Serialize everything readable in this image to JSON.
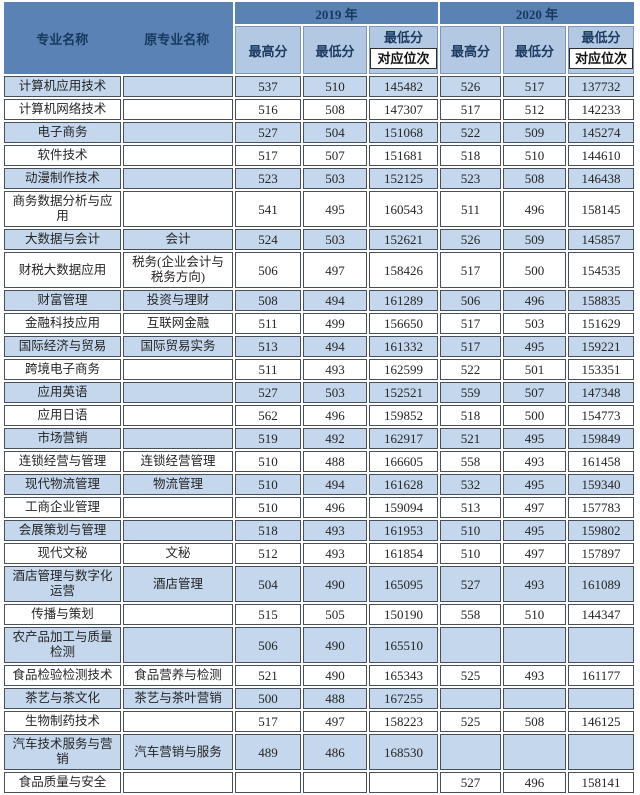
{
  "page": {
    "background": "#ffffff"
  },
  "colors": {
    "header_blue": "#5a82b4",
    "subheader_blue": "#b3c8e2",
    "row_blue": "#c4d7ec",
    "row_white": "#ffffff",
    "header_text": "#17395f",
    "cell_border": "#49505a"
  },
  "table": {
    "headers": {
      "major": "专业名称",
      "original_major": "原专业名称",
      "year_groups": [
        "2019 年",
        "2020 年"
      ],
      "sub": {
        "max": "最高分",
        "min": "最低分",
        "rank_top": "最低分",
        "rank_bottom": "对应位次"
      }
    },
    "chart_data": {
      "type": "table",
      "columns": [
        "专业名称",
        "原专业名称",
        "2019最高分",
        "2019最低分",
        "2019最低分对应位次",
        "2020最高分",
        "2020最低分",
        "2020最低分对应位次"
      ]
    },
    "rows": [
      {
        "cells": [
          "计算机应用技术",
          "",
          "537",
          "510",
          "145482",
          "526",
          "517",
          "137732"
        ]
      },
      {
        "cells": [
          "计算机网络技术",
          "",
          "516",
          "508",
          "147307",
          "517",
          "512",
          "142233"
        ]
      },
      {
        "cells": [
          "电子商务",
          "",
          "527",
          "504",
          "151068",
          "522",
          "509",
          "145274"
        ]
      },
      {
        "cells": [
          "软件技术",
          "",
          "517",
          "507",
          "151681",
          "518",
          "510",
          "144610"
        ]
      },
      {
        "cells": [
          "动漫制作技术",
          "",
          "523",
          "503",
          "152125",
          "523",
          "508",
          "146438"
        ]
      },
      {
        "cells": [
          "商务数据分析与应用",
          "",
          "541",
          "495",
          "160543",
          "511",
          "496",
          "158145"
        ]
      },
      {
        "cells": [
          "大数据与会计",
          "会计",
          "524",
          "503",
          "152621",
          "526",
          "509",
          "145857"
        ]
      },
      {
        "cells": [
          "财税大数据应用",
          "税务(企业会计与税务方向)",
          "506",
          "497",
          "158426",
          "517",
          "500",
          "154535"
        ]
      },
      {
        "cells": [
          "财富管理",
          "投资与理财",
          "508",
          "494",
          "161289",
          "506",
          "496",
          "158835"
        ]
      },
      {
        "cells": [
          "金融科技应用",
          "互联网金融",
          "511",
          "499",
          "156650",
          "517",
          "503",
          "151629"
        ]
      },
      {
        "cells": [
          "国际经济与贸易",
          "国际贸易实务",
          "513",
          "494",
          "161332",
          "517",
          "495",
          "159221"
        ]
      },
      {
        "cells": [
          "跨境电子商务",
          "",
          "511",
          "493",
          "162599",
          "522",
          "501",
          "153351"
        ]
      },
      {
        "cells": [
          "应用英语",
          "",
          "527",
          "503",
          "152521",
          "559",
          "507",
          "147348"
        ]
      },
      {
        "cells": [
          "应用日语",
          "",
          "562",
          "496",
          "159852",
          "518",
          "500",
          "154773"
        ]
      },
      {
        "cells": [
          "市场营销",
          "",
          "519",
          "492",
          "162917",
          "521",
          "495",
          "159849"
        ]
      },
      {
        "cells": [
          "连锁经营与管理",
          "连锁经营管理",
          "510",
          "488",
          "166605",
          "558",
          "493",
          "161458"
        ]
      },
      {
        "cells": [
          "现代物流管理",
          "物流管理",
          "510",
          "494",
          "161628",
          "532",
          "495",
          "159340"
        ]
      },
      {
        "cells": [
          "工商企业管理",
          "",
          "510",
          "496",
          "159094",
          "513",
          "497",
          "157783"
        ]
      },
      {
        "cells": [
          "会展策划与管理",
          "",
          "518",
          "493",
          "161953",
          "510",
          "495",
          "159802"
        ]
      },
      {
        "cells": [
          "现代文秘",
          "文秘",
          "512",
          "493",
          "161854",
          "510",
          "497",
          "157897"
        ]
      },
      {
        "cells": [
          "酒店管理与数字化运营",
          "酒店管理",
          "504",
          "490",
          "165095",
          "527",
          "493",
          "161089"
        ]
      },
      {
        "cells": [
          "传播与策划",
          "",
          "515",
          "505",
          "150190",
          "558",
          "510",
          "144347"
        ]
      },
      {
        "cells": [
          "农产品加工与质量检测",
          "",
          "506",
          "490",
          "165510",
          "",
          "",
          ""
        ]
      },
      {
        "cells": [
          "食品检验检测技术",
          "食品营养与检测",
          "521",
          "490",
          "165343",
          "525",
          "493",
          "161177"
        ]
      },
      {
        "cells": [
          "茶艺与茶文化",
          "茶艺与茶叶营销",
          "500",
          "488",
          "167255",
          "",
          "",
          ""
        ]
      },
      {
        "cells": [
          "生物制药技术",
          "",
          "517",
          "497",
          "158223",
          "525",
          "508",
          "146125"
        ]
      },
      {
        "cells": [
          "汽车技术服务与营销",
          "汽车营销与服务",
          "489",
          "486",
          "168530",
          "",
          "",
          ""
        ]
      },
      {
        "cells": [
          "食品质量与安全",
          "",
          "",
          "",
          "",
          "527",
          "496",
          "158141"
        ]
      }
    ]
  }
}
